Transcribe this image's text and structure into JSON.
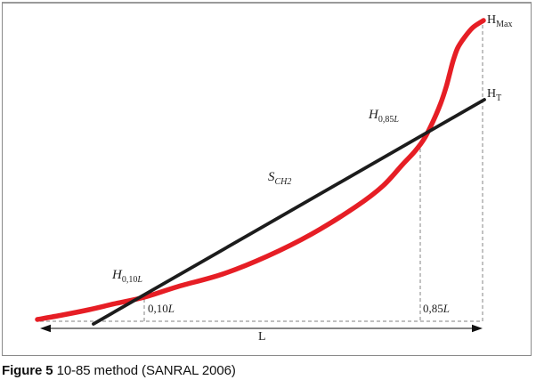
{
  "figure": {
    "caption_label": "Figure 5",
    "caption_text": "10-85 method (SANRAL 2006)"
  },
  "colors": {
    "curve_red": "#e61e25",
    "line_black": "#1c1c1c",
    "dash_gray": "#9a9a9a",
    "arrow_gray": "#3c3c3c",
    "text": "#1f1f1f"
  },
  "labels": {
    "h_max": {
      "main": "H",
      "sub": "Max"
    },
    "h_t": {
      "main": "H",
      "sub": "T"
    },
    "h_085l": {
      "main": "H",
      "sub_num": "0,85",
      "sub_var": "L"
    },
    "s_ch2": {
      "main": "S",
      "sub_var": "CH2"
    },
    "h_010l": {
      "main": "H",
      "sub_num": "0,10",
      "sub_var": "L"
    },
    "tick_010l": {
      "num": "0,10",
      "var": "L"
    },
    "tick_085l": {
      "num": "0,85",
      "var": "L"
    },
    "length_label": "L"
  },
  "chart_data": {
    "type": "line",
    "title": "10-85 method (SANRAL 2006)",
    "legend": "none",
    "grid": "off",
    "axes": "none (conceptual longitudinal stream profile sketch)",
    "series": [
      {
        "name": "stream-profile-curve",
        "color_key": "curve_red",
        "width": 5.5,
        "points": [
          [
            42,
            359
          ],
          [
            70,
            354
          ],
          [
            100,
            348
          ],
          [
            130,
            341
          ],
          [
            162,
            334
          ],
          [
            200,
            322
          ],
          [
            250,
            308
          ],
          [
            300,
            288
          ],
          [
            350,
            263
          ],
          [
            400,
            232
          ],
          [
            430,
            209
          ],
          [
            452,
            185
          ],
          [
            466,
            170
          ],
          [
            477,
            155
          ],
          [
            487,
            135
          ],
          [
            495,
            116
          ],
          [
            501,
            98
          ],
          [
            505,
            83
          ],
          [
            509,
            68
          ],
          [
            514,
            54
          ],
          [
            521,
            43
          ],
          [
            531,
            31
          ],
          [
            543,
            23
          ]
        ]
      },
      {
        "name": "slope-line-10-85",
        "color_key": "line_black",
        "width": 3.8,
        "points": [
          [
            105,
            364
          ],
          [
            544,
            112
          ]
        ]
      }
    ],
    "guides": {
      "vertical_dashed": [
        {
          "x": 162,
          "y1": 336,
          "y2": 361,
          "at": "0,10L"
        },
        {
          "x": 472,
          "y1": 160,
          "y2": 361,
          "at": "0,85L"
        },
        {
          "x": 542,
          "y1": 28,
          "y2": 361,
          "at": "L / H_Max"
        }
      ],
      "horizontal_dashed": {
        "x1": 45,
        "x2": 542,
        "y": 361
      }
    },
    "length_arrow": {
      "x1": 45,
      "x2": 542,
      "y": 369,
      "label": "L"
    },
    "intersections": [
      {
        "label": "H_0,10L",
        "x": 162,
        "y": 334
      },
      {
        "label": "H_0,85L",
        "x": 476,
        "y": 154
      }
    ]
  }
}
